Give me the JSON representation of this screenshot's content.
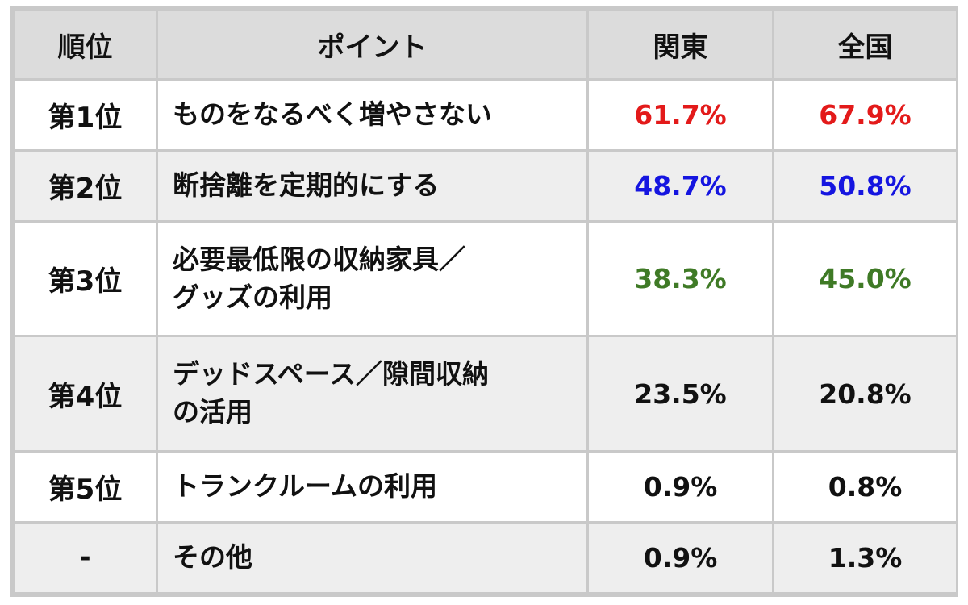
{
  "table": {
    "headers": {
      "rank": "順位",
      "point": "ポイント",
      "kanto": "関東",
      "national": "全国"
    },
    "rows": [
      {
        "rank": "第1位",
        "point": "ものをなるべく増やさない",
        "kanto": "61.7%",
        "national": "67.9%",
        "value_color": "#e31a1a"
      },
      {
        "rank": "第2位",
        "point": "断捨離を定期的にする",
        "kanto": "48.7%",
        "national": "50.8%",
        "value_color": "#1515e0"
      },
      {
        "rank": "第3位",
        "point_line1": "必要最低限の収納家具／",
        "point_line2": "グッズの利用",
        "kanto": "38.3%",
        "national": "45.0%",
        "value_color": "#3f7a26"
      },
      {
        "rank": "第4位",
        "point_line1": "デッドスペース／隙間収納",
        "point_line2": "の活用",
        "kanto": "23.5%",
        "national": "20.8%",
        "value_color": "#111111"
      },
      {
        "rank": "第5位",
        "point": "トランクルームの利用",
        "kanto": "0.9%",
        "national": "0.8%",
        "value_color": "#111111"
      },
      {
        "rank": "-",
        "point": "その他",
        "kanto": "0.9%",
        "national": "1.3%",
        "value_color": "#111111"
      }
    ]
  }
}
